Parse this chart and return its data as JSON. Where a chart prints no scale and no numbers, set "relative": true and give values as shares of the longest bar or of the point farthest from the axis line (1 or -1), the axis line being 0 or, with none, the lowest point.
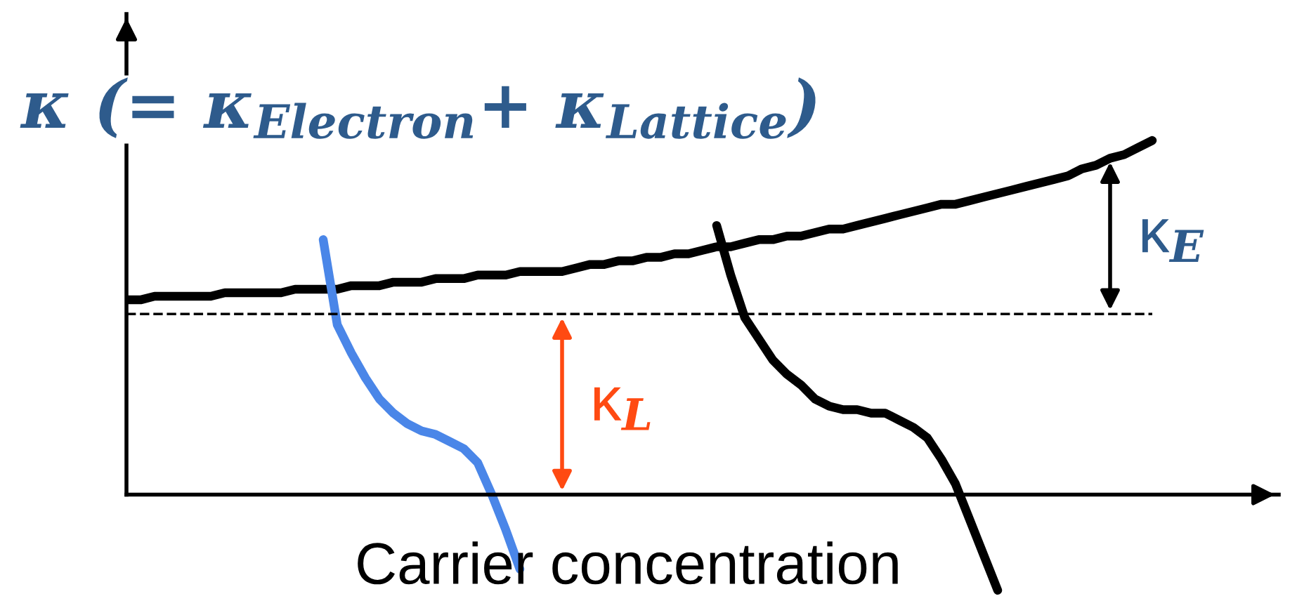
{
  "chart_data": {
    "type": "line",
    "relative": true,
    "title": "κ (= κ$_{Electron}$+ κ$_{Lattice}$)",
    "xlabel": "Carrier concentration",
    "categories": [
      null,
      null,
      null,
      null,
      null,
      null,
      null,
      null,
      null,
      null,
      null,
      null,
      null,
      null,
      null,
      null,
      null,
      null,
      null,
      null,
      null,
      null,
      null,
      null,
      null,
      null,
      null,
      null,
      null,
      null,
      null,
      null,
      null,
      null,
      null,
      null,
      null,
      null,
      null,
      null,
      null,
      null,
      null,
      null,
      null,
      null,
      null,
      null,
      null,
      null,
      null,
      null,
      null,
      null,
      null,
      null,
      null,
      null,
      null,
      null,
      null,
      null,
      null,
      null,
      null,
      null,
      null,
      null,
      null,
      null,
      null,
      null,
      null,
      null,
      null
    ],
    "series": [
      {
        "color": "#000000",
        "values": [
          0.55,
          0.55,
          0.56,
          0.56,
          0.56,
          0.56,
          0.56,
          0.57,
          0.57,
          0.57,
          0.57,
          0.57,
          0.58,
          0.58,
          0.58,
          0.58,
          0.59,
          0.59,
          0.59,
          0.6,
          0.6,
          0.6,
          0.61,
          0.61,
          0.61,
          0.62,
          0.62,
          0.62,
          0.63,
          0.63,
          0.63,
          0.63,
          0.64,
          0.65,
          0.65,
          0.66,
          0.66,
          0.67,
          0.67,
          0.68,
          0.68,
          0.69,
          0.7,
          0.7,
          0.71,
          0.72,
          0.72,
          0.73,
          0.73,
          0.74,
          0.75,
          0.75,
          0.76,
          0.77,
          0.78,
          0.79,
          0.8,
          0.81,
          0.82,
          0.82,
          0.83,
          0.84,
          0.85,
          0.86,
          0.87,
          0.88,
          0.89,
          0.9,
          0.92,
          0.93,
          0.95,
          0.96,
          0.98,
          1.0,
          null
        ]
      },
      {
        "color": "#4a86e8",
        "values": [
          null,
          null,
          null,
          null,
          null,
          null,
          null,
          null,
          null,
          null,
          null,
          null,
          null,
          null,
          0.72,
          0.48,
          0.4,
          0.33,
          0.27,
          0.23,
          0.2,
          0.18,
          0.17,
          0.15,
          0.13,
          0.09,
          0,
          -0.1,
          -0.21,
          null,
          null,
          null,
          null,
          null,
          null,
          null,
          null,
          null,
          null,
          null,
          null,
          null,
          null,
          null,
          null,
          null,
          null,
          null,
          null,
          null,
          null,
          null,
          null,
          null,
          null,
          null,
          null,
          null,
          null,
          null,
          null,
          null,
          null,
          null,
          null,
          null,
          null,
          null,
          null,
          null,
          null,
          null,
          null,
          null,
          null
        ]
      },
      {
        "color": "#000000",
        "values": [
          null,
          null,
          null,
          null,
          null,
          null,
          null,
          null,
          null,
          null,
          null,
          null,
          null,
          null,
          null,
          null,
          null,
          null,
          null,
          null,
          null,
          null,
          null,
          null,
          null,
          null,
          null,
          null,
          null,
          null,
          null,
          null,
          null,
          null,
          null,
          null,
          null,
          null,
          null,
          null,
          null,
          null,
          0.76,
          0.62,
          0.5,
          0.44,
          0.38,
          0.34,
          0.31,
          0.27,
          0.25,
          0.24,
          0.24,
          0.23,
          0.23,
          0.21,
          0.19,
          0.16,
          0.1,
          0.03,
          -0.07,
          -0.17,
          -0.27,
          null,
          null,
          null,
          null,
          null,
          null,
          null,
          null,
          null,
          null,
          null,
          null
        ]
      }
    ],
    "ref_lines": [
      {
        "axis": "y",
        "value": 0.51,
        "color": "#000000",
        "line_style": "dashed"
      }
    ],
    "annotations": [
      "κ$_{L}$",
      "κ$_{E}$"
    ],
    "legend": false,
    "marker": "none",
    "line_style": "solid"
  }
}
